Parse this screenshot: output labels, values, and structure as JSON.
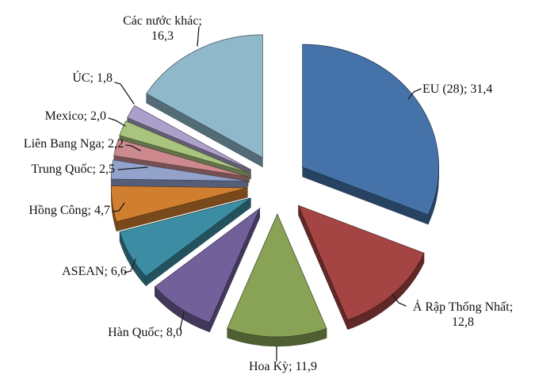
{
  "chart_data": {
    "type": "pie",
    "variant": "3d-exploded",
    "direction": "clockwise",
    "start_angle_deg": 0,
    "background": "#ffffff",
    "legend": "none",
    "label_format": "name; value (comma decimal)",
    "slices": [
      {
        "name": "EU (28)",
        "value": 31.4,
        "display_lines": [
          "EU (28); 31,4"
        ],
        "color": "#4573A9"
      },
      {
        "name": "Ả Rập Thống Nhất",
        "value": 12.8,
        "display_lines": [
          "Ả Rập Thống Nhất;",
          "12,8"
        ],
        "color": "#A54543"
      },
      {
        "name": "Hoa Kỳ",
        "value": 11.9,
        "display_lines": [
          "Hoa Kỳ; 11,9"
        ],
        "color": "#88A355"
      },
      {
        "name": "Hàn Quốc",
        "value": 8.0,
        "display_lines": [
          "Hàn Quốc; 8,0"
        ],
        "color": "#72609B"
      },
      {
        "name": "ASEAN",
        "value": 6.6,
        "display_lines": [
          "ASEAN; 6,6"
        ],
        "color": "#3C8DA3"
      },
      {
        "name": "Hồng Công",
        "value": 4.7,
        "display_lines": [
          "Hồng Công; 4,7"
        ],
        "color": "#D07E2F"
      },
      {
        "name": "Trung Quốc",
        "value": 2.5,
        "display_lines": [
          "Trung Quốc; 2,5"
        ],
        "color": "#92A2CB"
      },
      {
        "name": "Liên Bang Nga",
        "value": 2.2,
        "display_lines": [
          "Liên Bang Nga; 2,2"
        ],
        "color": "#CD8A8E"
      },
      {
        "name": "Mexico",
        "value": 2.0,
        "display_lines": [
          "Mexico; 2,0"
        ],
        "color": "#A9C47D"
      },
      {
        "name": "ÚC",
        "value": 1.8,
        "display_lines": [
          "ÚC; 1,8"
        ],
        "color": "#ACA0CB"
      },
      {
        "name": "Các nước khác",
        "value": 16.3,
        "display_lines": [
          "Các nước khác;",
          "16,3"
        ],
        "color": "#8FB8CB"
      }
    ]
  }
}
